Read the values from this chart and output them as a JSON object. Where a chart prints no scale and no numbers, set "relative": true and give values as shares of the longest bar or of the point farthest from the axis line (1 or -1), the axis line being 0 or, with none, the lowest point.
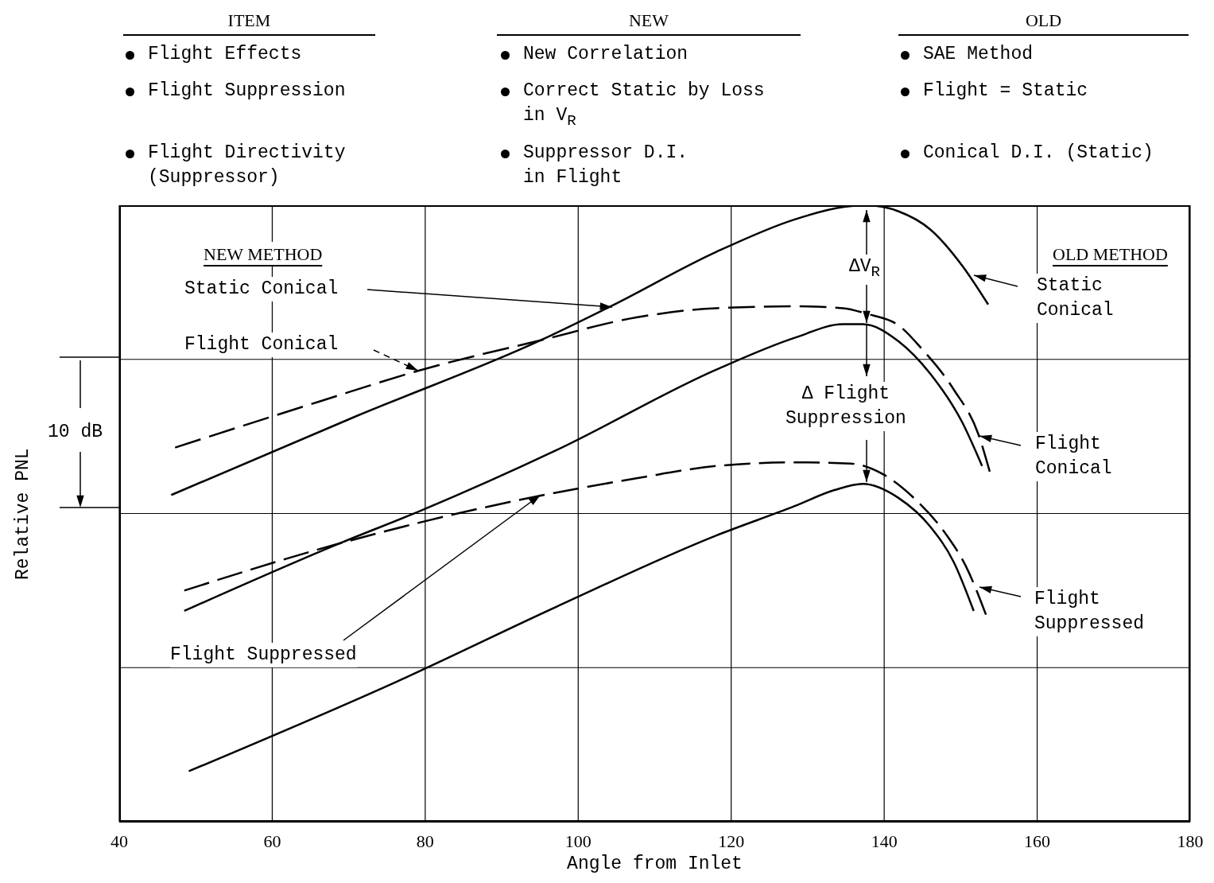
{
  "chart_data": {
    "type": "line",
    "relative": true,
    "xlabel": "Angle from Inlet",
    "ylabel": "Relative PNL",
    "xlim": [
      40,
      180
    ],
    "xticks": [
      40,
      60,
      80,
      100,
      120,
      140,
      160,
      180
    ],
    "grid": true,
    "marker": "none",
    "series": [
      {
        "color": "#000000",
        "line_style": "solid",
        "x": [
          46.8,
          71.2,
          95.1,
          104.4,
          118.0,
          128.3,
          134.6,
          137.7,
          141.9,
          146.0,
          150.2,
          153.6
        ],
        "values": [
          0.53,
          0.659,
          0.781,
          0.837,
          0.924,
          0.977,
          0.997,
          1,
          0.99,
          0.961,
          0.902,
          0.839
        ]
      },
      {
        "color": "#000000",
        "line_style": "dashed",
        "x": [
          47.3,
          66.0,
          79.5,
          95.1,
          107.6,
          118.0,
          128.3,
          134.6,
          137.7,
          141.9,
          145.0,
          149.1,
          152.3,
          153.8
        ],
        "values": [
          0.607,
          0.681,
          0.733,
          0.781,
          0.818,
          0.833,
          0.836,
          0.833,
          0.824,
          0.805,
          0.766,
          0.701,
          0.629,
          0.568
        ]
      },
      {
        "color": "#000000",
        "line_style": "solid",
        "x": [
          48.5,
          69.1,
          79.5,
          97.2,
          118.0,
          128.3,
          134.6,
          137.2,
          141.9,
          146.0,
          150.2,
          152.8
        ],
        "values": [
          0.342,
          0.453,
          0.505,
          0.603,
          0.733,
          0.785,
          0.807,
          0.807,
          0.779,
          0.727,
          0.648,
          0.577
        ]
      },
      {
        "color": "#000000",
        "line_style": "dashed",
        "x": [
          48.5,
          68.1,
          79.5,
          95.1,
          107.6,
          118.0,
          128.3,
          135.6,
          139.8,
          143.9,
          148.1,
          150.7,
          153.3
        ],
        "values": [
          0.375,
          0.449,
          0.486,
          0.529,
          0.557,
          0.577,
          0.583,
          0.581,
          0.564,
          0.525,
          0.466,
          0.414,
          0.336
        ]
      },
      {
        "color": "#000000",
        "line_style": "solid",
        "x": [
          49.1,
          76.4,
          97.2,
          118.0,
          128.3,
          133.5,
          137.2,
          141.9,
          146.0,
          149.1,
          151.7
        ],
        "values": [
          0.082,
          0.228,
          0.349,
          0.464,
          0.512,
          0.538,
          0.548,
          0.525,
          0.479,
          0.421,
          0.342
        ]
      }
    ],
    "annotations": [
      "ITEM",
      "NEW",
      "OLD",
      "Flight Effects",
      "Flight Suppression",
      "Flight Directivity\n(Suppressor)",
      "New Correlation",
      "Correct Static by Loss\nin V$_{R}$",
      "Suppressor D.I.\nin Flight",
      "SAE Method",
      "Flight = Static",
      "Conical D.I. (Static)",
      "NEW METHOD",
      "Static Conical",
      "Flight Conical",
      "Flight Suppressed",
      "OLD METHOD",
      "Static\nConical",
      "Flight\nConical",
      "Flight\nSuppressed",
      "ΔV$_{R}$",
      "Δ Flight\nSuppression",
      "10 dB"
    ]
  }
}
